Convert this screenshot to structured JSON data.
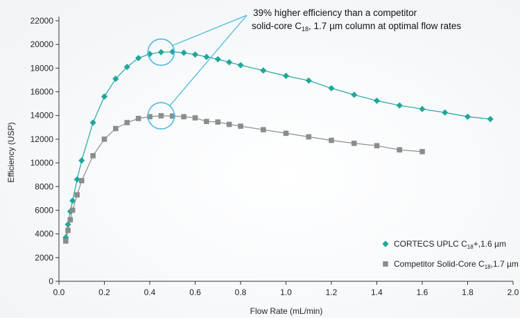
{
  "chart_data": {
    "type": "line",
    "xlabel": "Flow Rate (mL/min)",
    "ylabel": "Efficiency (USP)",
    "xlim": [
      0,
      2.0
    ],
    "ylim": [
      0,
      22000
    ],
    "x_ticks": [
      "0.0",
      "0.2",
      "0.4",
      "0.6",
      "0.8",
      "1.0",
      "1.2",
      "1.4",
      "1.6",
      "1.8",
      "2.0"
    ],
    "y_ticks": [
      "0",
      "2000",
      "4000",
      "6000",
      "8000",
      "10000",
      "12000",
      "14000",
      "16000",
      "18000",
      "20000",
      "22000"
    ],
    "grid": false,
    "legend_position": "bottom-right",
    "annotation": {
      "line1": "39% higher efficiency than a competitor",
      "line2_before": "solid-core C",
      "line2_sub": "18",
      "line2_after": ", 1.7 µm column at optimal flow rates"
    },
    "series": [
      {
        "name_main": "CORTECS UPLC C",
        "name_sub": "18",
        "name_tail": "+,1.6 µm",
        "color": "#1fa79a",
        "marker": "diamond",
        "points": [
          [
            0.03,
            3700
          ],
          [
            0.04,
            4800
          ],
          [
            0.05,
            5900
          ],
          [
            0.06,
            6800
          ],
          [
            0.08,
            8600
          ],
          [
            0.1,
            10200
          ],
          [
            0.15,
            13400
          ],
          [
            0.2,
            15600
          ],
          [
            0.25,
            17100
          ],
          [
            0.3,
            18100
          ],
          [
            0.35,
            18850
          ],
          [
            0.4,
            19200
          ],
          [
            0.45,
            19350
          ],
          [
            0.5,
            19380
          ],
          [
            0.55,
            19300
          ],
          [
            0.6,
            19150
          ],
          [
            0.65,
            18950
          ],
          [
            0.7,
            18750
          ],
          [
            0.75,
            18500
          ],
          [
            0.8,
            18250
          ],
          [
            0.9,
            17800
          ],
          [
            1.0,
            17350
          ],
          [
            1.1,
            16950
          ],
          [
            1.2,
            16300
          ],
          [
            1.3,
            15750
          ],
          [
            1.4,
            15250
          ],
          [
            1.5,
            14850
          ],
          [
            1.6,
            14550
          ],
          [
            1.7,
            14250
          ],
          [
            1.8,
            13900
          ],
          [
            1.9,
            13700
          ]
        ]
      },
      {
        "name_main": "Competitor Solid-Core C",
        "name_sub": "18",
        "name_tail": ",1.7 µm",
        "color": "#8c8c8c",
        "marker": "square",
        "points": [
          [
            0.03,
            3400
          ],
          [
            0.04,
            4300
          ],
          [
            0.05,
            5200
          ],
          [
            0.06,
            6000
          ],
          [
            0.08,
            7300
          ],
          [
            0.1,
            8500
          ],
          [
            0.15,
            10600
          ],
          [
            0.2,
            12000
          ],
          [
            0.25,
            12900
          ],
          [
            0.3,
            13400
          ],
          [
            0.35,
            13750
          ],
          [
            0.4,
            13900
          ],
          [
            0.45,
            13980
          ],
          [
            0.5,
            13950
          ],
          [
            0.55,
            13900
          ],
          [
            0.6,
            13800
          ],
          [
            0.65,
            13500
          ],
          [
            0.7,
            13450
          ],
          [
            0.75,
            13250
          ],
          [
            0.8,
            13100
          ],
          [
            0.9,
            12800
          ],
          [
            1.0,
            12500
          ],
          [
            1.1,
            12200
          ],
          [
            1.2,
            11900
          ],
          [
            1.3,
            11650
          ],
          [
            1.4,
            11450
          ],
          [
            1.5,
            11100
          ],
          [
            1.6,
            10950
          ]
        ]
      }
    ]
  }
}
